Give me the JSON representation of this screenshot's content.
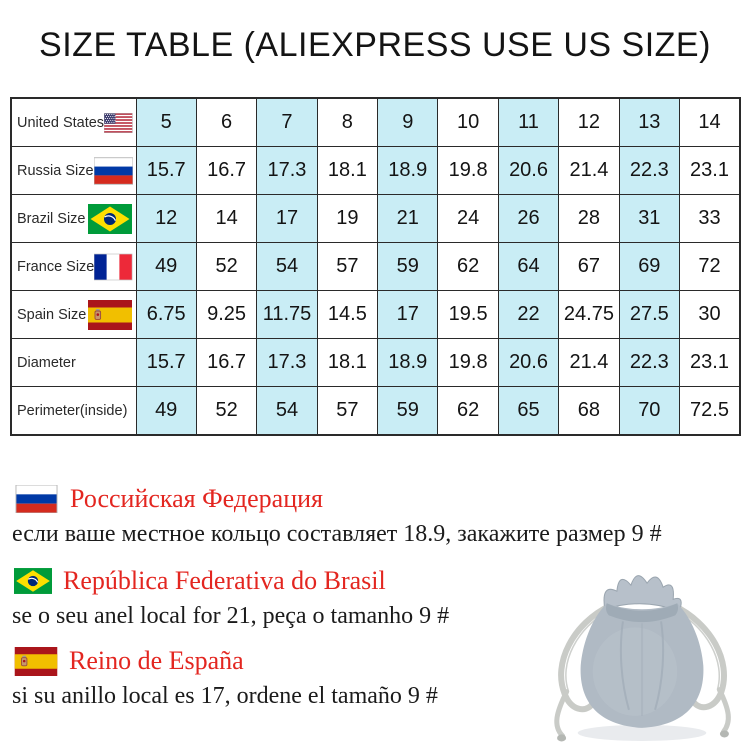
{
  "title": "SIZE TABLE (ALIEXPRESS USE US SIZE)",
  "colors": {
    "highlight_cell": "#c9edf5",
    "heading_red": "#e32620",
    "table_border": "#2a2a2a"
  },
  "icons": {
    "us": "united-states-flag",
    "ru": "russia-flag",
    "br": "brazil-flag",
    "fr": "france-flag",
    "es": "spain-flag",
    "pouch": "gray-velvet-drawstring-pouch"
  },
  "size_table": {
    "rows": [
      {
        "label": "United States",
        "flag": "us",
        "values": [
          "5",
          "6",
          "7",
          "8",
          "9",
          "10",
          "11",
          "12",
          "13",
          "14"
        ]
      },
      {
        "label": "Russia Size",
        "flag": "ru",
        "values": [
          "15.7",
          "16.7",
          "17.3",
          "18.1",
          "18.9",
          "19.8",
          "20.6",
          "21.4",
          "22.3",
          "23.1"
        ]
      },
      {
        "label": "Brazil Size",
        "flag": "br",
        "values": [
          "12",
          "14",
          "17",
          "19",
          "21",
          "24",
          "26",
          "28",
          "31",
          "33"
        ]
      },
      {
        "label": "France Size",
        "flag": "fr",
        "values": [
          "49",
          "52",
          "54",
          "57",
          "59",
          "62",
          "64",
          "67",
          "69",
          "72"
        ]
      },
      {
        "label": "Spain Size",
        "flag": "es",
        "values": [
          "6.75",
          "9.25",
          "11.75",
          "14.5",
          "17",
          "19.5",
          "22",
          "24.75",
          "27.5",
          "30"
        ]
      },
      {
        "label": "Diameter",
        "flag": null,
        "values": [
          "15.7",
          "16.7",
          "17.3",
          "18.1",
          "18.9",
          "19.8",
          "20.6",
          "21.4",
          "22.3",
          "23.1"
        ]
      },
      {
        "label": "Perimeter(inside)",
        "flag": null,
        "values": [
          "49",
          "52",
          "54",
          "57",
          "59",
          "62",
          "65",
          "68",
          "70",
          "72.5"
        ]
      }
    ]
  },
  "notes": [
    {
      "flag": "ru",
      "heading": "Российская Федерация",
      "body": "если ваше местное кольцо составляет 18.9, закажите размер 9 #"
    },
    {
      "flag": "br",
      "heading": "República Federativa do Brasil",
      "body": "se o seu anel local for 21, peça o tamanho 9 #"
    },
    {
      "flag": "es",
      "heading": "Reino de España",
      "body": "si su anillo local es 17, ordene el tamaño 9 #"
    }
  ]
}
